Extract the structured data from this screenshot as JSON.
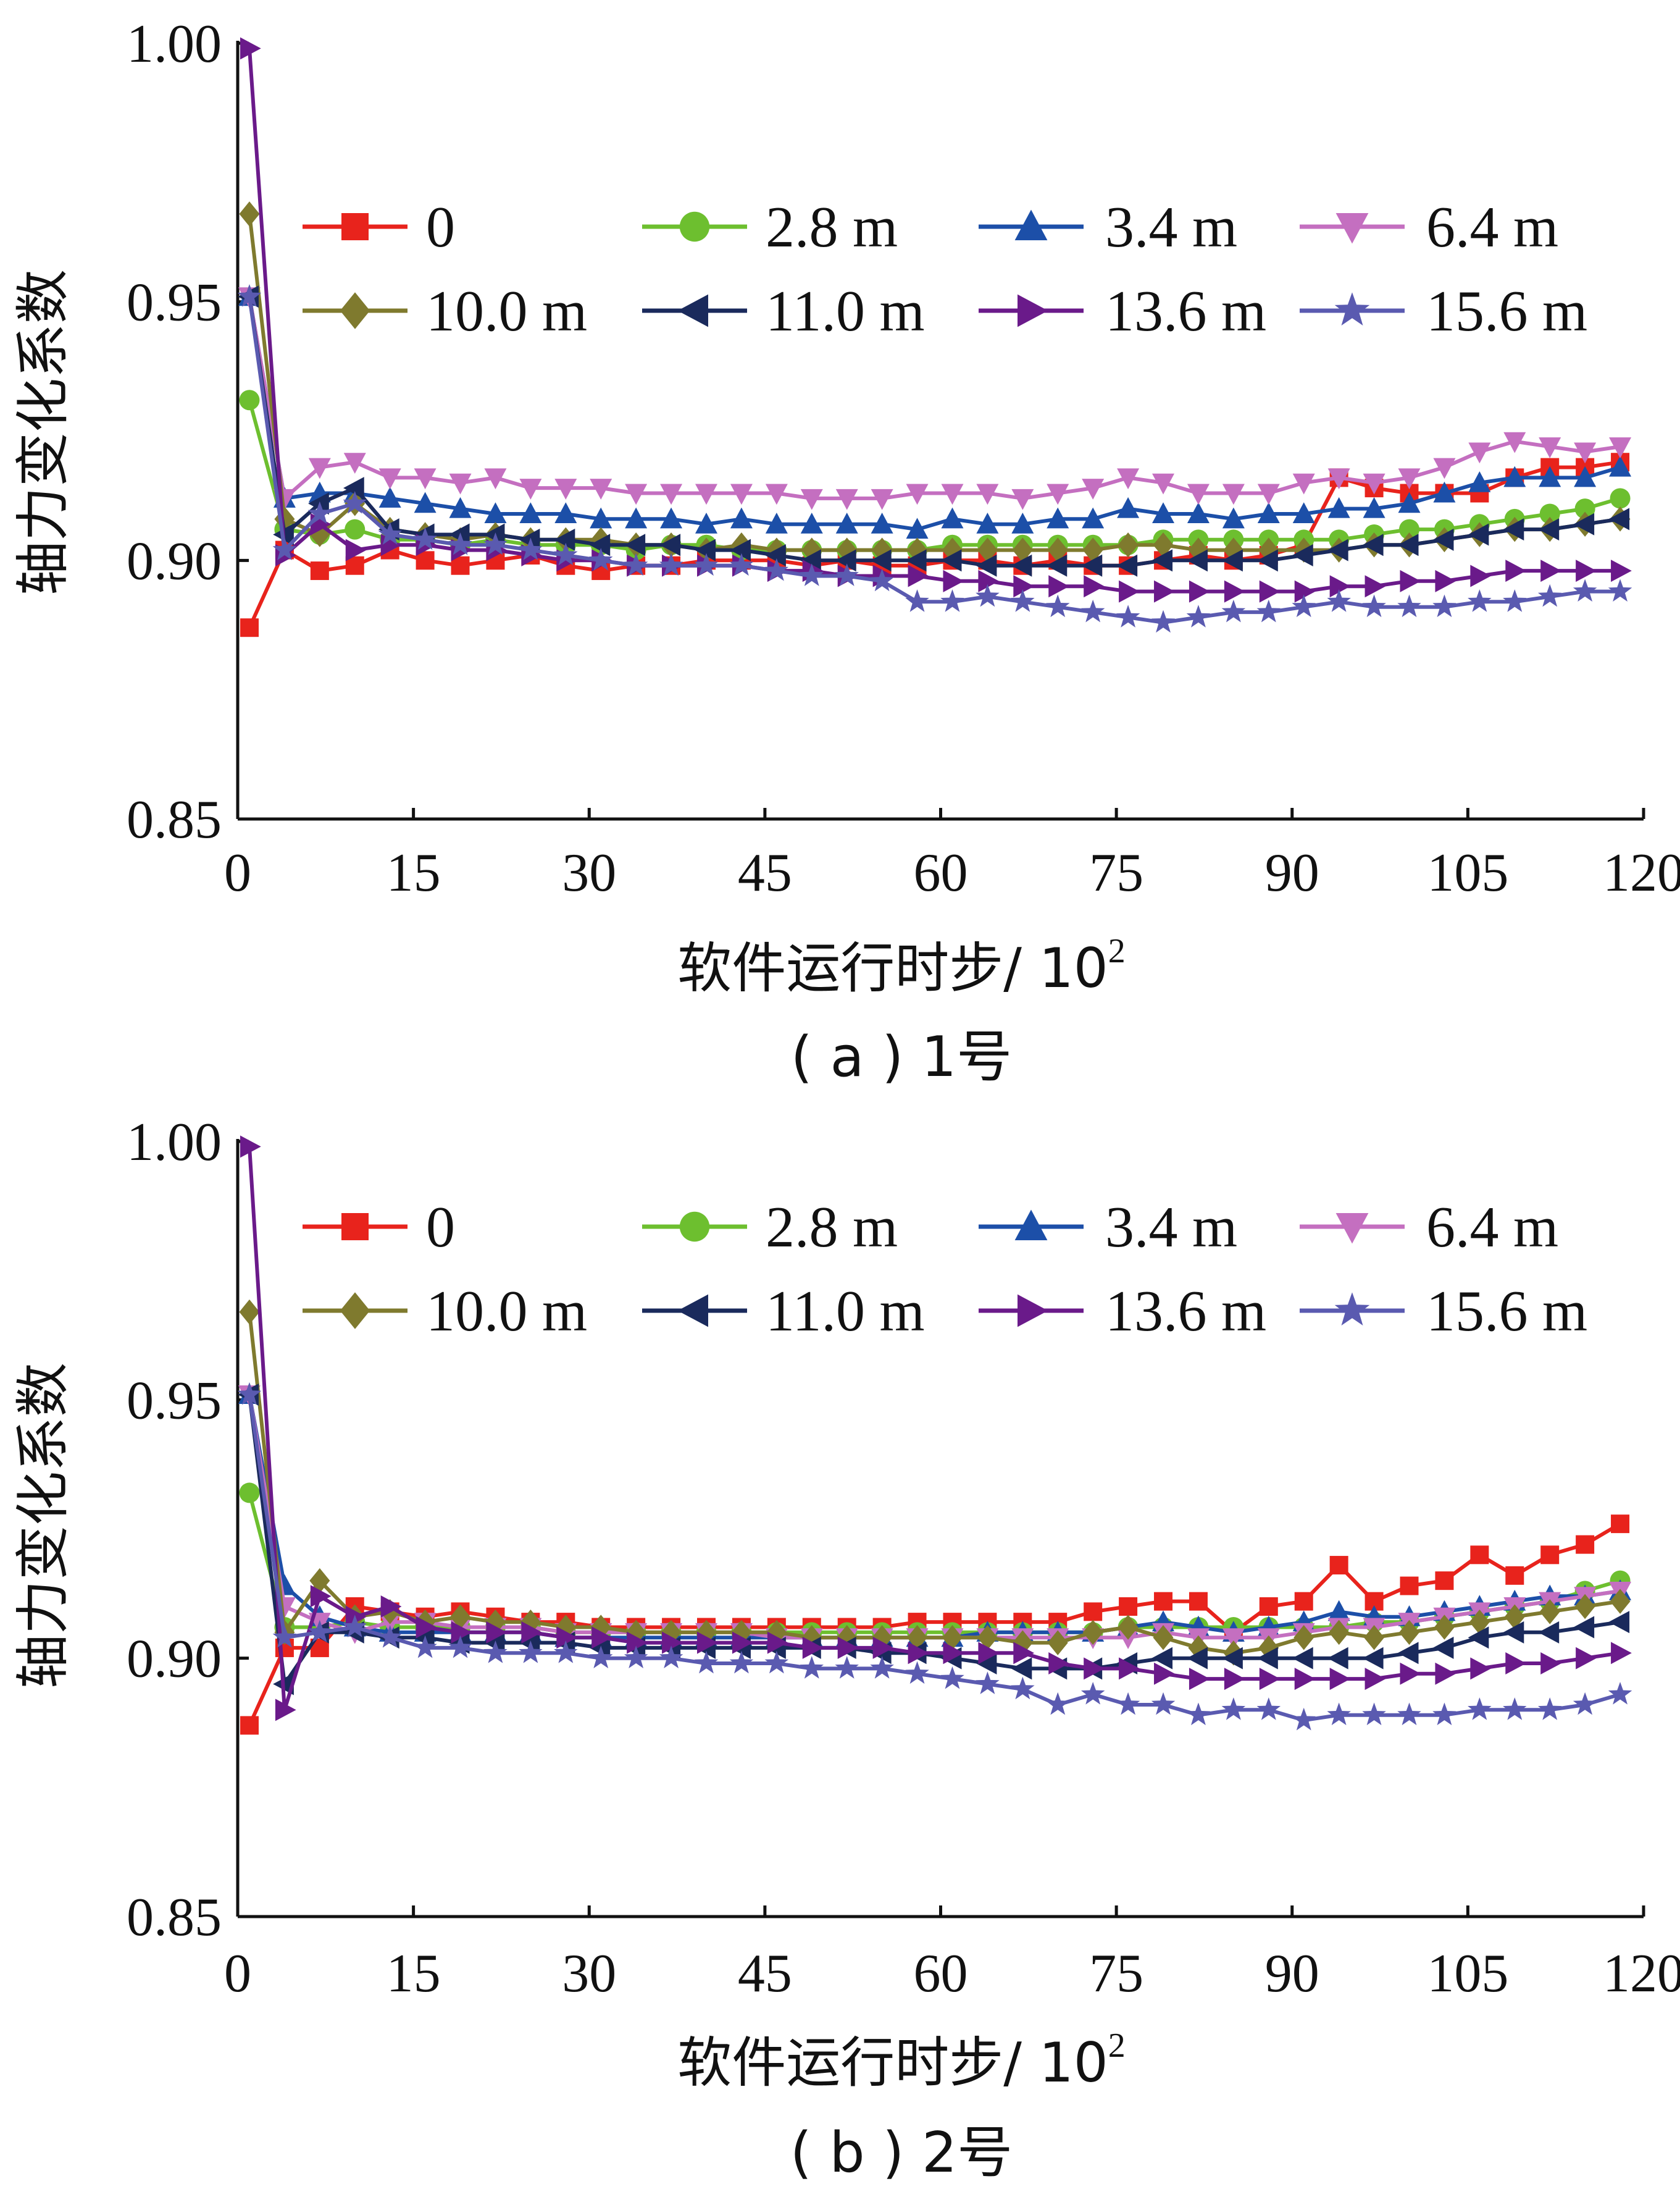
{
  "chart_data": [
    {
      "type": "line",
      "caption": "( a ) 1号",
      "xlabel": "软件运行时步/ 10",
      "xlabel_sup": "2",
      "ylabel": "轴力变化系数",
      "xlim": [
        0,
        120
      ],
      "ylim": [
        0.85,
        1.0
      ],
      "xticks": [
        "0",
        "15",
        "30",
        "45",
        "60",
        "75",
        "90",
        "105",
        "120"
      ],
      "yticks": [
        "0.85",
        "0.90",
        "0.95",
        "1.00"
      ],
      "x": [
        1,
        4,
        7,
        10,
        13,
        16,
        19,
        22,
        25,
        28,
        31,
        34,
        37,
        40,
        43,
        46,
        49,
        52,
        55,
        58,
        61,
        64,
        67,
        70,
        73,
        76,
        79,
        82,
        85,
        88,
        91,
        94,
        97,
        100,
        103,
        106,
        109,
        112,
        115,
        118
      ],
      "legend_position": "top",
      "series": [
        {
          "name": "0",
          "color": "#e8231c",
          "marker": "square",
          "values": [
            0.887,
            0.902,
            0.898,
            0.899,
            0.902,
            0.9,
            0.899,
            0.9,
            0.901,
            0.899,
            0.898,
            0.899,
            0.899,
            0.9,
            0.9,
            0.9,
            0.899,
            0.9,
            0.899,
            0.899,
            0.9,
            0.9,
            0.899,
            0.9,
            0.899,
            0.899,
            0.9,
            0.901,
            0.9,
            0.901,
            0.903,
            0.916,
            0.914,
            0.913,
            0.913,
            0.913,
            0.916,
            0.918,
            0.918,
            0.919
          ]
        },
        {
          "name": "2.8 m",
          "color": "#6dbf2f",
          "marker": "circle",
          "values": [
            0.931,
            0.906,
            0.905,
            0.906,
            0.904,
            0.904,
            0.903,
            0.904,
            0.903,
            0.903,
            0.903,
            0.902,
            0.903,
            0.903,
            0.902,
            0.902,
            0.902,
            0.902,
            0.902,
            0.902,
            0.903,
            0.903,
            0.903,
            0.903,
            0.903,
            0.903,
            0.904,
            0.904,
            0.904,
            0.904,
            0.904,
            0.904,
            0.905,
            0.906,
            0.906,
            0.907,
            0.908,
            0.909,
            0.91,
            0.912
          ]
        },
        {
          "name": "3.4 m",
          "color": "#1c4fa8",
          "marker": "triangle-up",
          "values": [
            0.951,
            0.912,
            0.913,
            0.913,
            0.912,
            0.911,
            0.91,
            0.909,
            0.909,
            0.909,
            0.908,
            0.908,
            0.908,
            0.907,
            0.908,
            0.907,
            0.907,
            0.907,
            0.907,
            0.906,
            0.908,
            0.907,
            0.907,
            0.908,
            0.908,
            0.91,
            0.909,
            0.909,
            0.908,
            0.909,
            0.909,
            0.91,
            0.91,
            0.911,
            0.913,
            0.915,
            0.916,
            0.916,
            0.916,
            0.918
          ]
        },
        {
          "name": "6.4 m",
          "color": "#c46fc0",
          "marker": "triangle-down",
          "values": [
            0.951,
            0.912,
            0.918,
            0.919,
            0.916,
            0.916,
            0.915,
            0.916,
            0.914,
            0.914,
            0.914,
            0.913,
            0.913,
            0.913,
            0.913,
            0.913,
            0.912,
            0.912,
            0.912,
            0.913,
            0.913,
            0.913,
            0.912,
            0.913,
            0.914,
            0.916,
            0.915,
            0.913,
            0.913,
            0.913,
            0.915,
            0.916,
            0.915,
            0.916,
            0.918,
            0.921,
            0.923,
            0.922,
            0.921,
            0.922
          ]
        },
        {
          "name": "10.0 m",
          "color": "#7f7a2e",
          "marker": "diamond",
          "values": [
            0.967,
            0.908,
            0.905,
            0.911,
            0.906,
            0.905,
            0.904,
            0.905,
            0.904,
            0.904,
            0.904,
            0.903,
            0.903,
            0.902,
            0.903,
            0.902,
            0.902,
            0.902,
            0.902,
            0.902,
            0.902,
            0.902,
            0.902,
            0.902,
            0.902,
            0.903,
            0.903,
            0.902,
            0.902,
            0.902,
            0.902,
            0.902,
            0.903,
            0.903,
            0.904,
            0.905,
            0.906,
            0.906,
            0.907,
            0.908
          ]
        },
        {
          "name": "11.0 m",
          "color": "#1a2a5c",
          "marker": "triangle-left",
          "values": [
            0.951,
            0.905,
            0.911,
            0.914,
            0.906,
            0.905,
            0.905,
            0.905,
            0.904,
            0.904,
            0.903,
            0.903,
            0.903,
            0.902,
            0.902,
            0.901,
            0.9,
            0.9,
            0.9,
            0.9,
            0.9,
            0.899,
            0.899,
            0.899,
            0.899,
            0.899,
            0.9,
            0.9,
            0.9,
            0.9,
            0.901,
            0.902,
            0.903,
            0.903,
            0.904,
            0.905,
            0.906,
            0.906,
            0.907,
            0.908
          ]
        },
        {
          "name": "13.6 m",
          "color": "#6a1a8a",
          "marker": "triangle-right",
          "values": [
            0.999,
            0.901,
            0.907,
            0.902,
            0.903,
            0.903,
            0.902,
            0.902,
            0.901,
            0.9,
            0.9,
            0.899,
            0.899,
            0.899,
            0.899,
            0.898,
            0.898,
            0.897,
            0.897,
            0.897,
            0.896,
            0.896,
            0.895,
            0.895,
            0.895,
            0.894,
            0.894,
            0.894,
            0.894,
            0.894,
            0.894,
            0.895,
            0.895,
            0.896,
            0.896,
            0.897,
            0.898,
            0.898,
            0.898,
            0.898
          ]
        },
        {
          "name": "15.6 m",
          "color": "#5a5ab0",
          "marker": "star",
          "values": [
            0.951,
            0.902,
            0.909,
            0.911,
            0.905,
            0.904,
            0.903,
            0.903,
            0.902,
            0.901,
            0.9,
            0.899,
            0.899,
            0.899,
            0.899,
            0.898,
            0.897,
            0.897,
            0.896,
            0.892,
            0.892,
            0.893,
            0.892,
            0.891,
            0.89,
            0.889,
            0.888,
            0.889,
            0.89,
            0.89,
            0.891,
            0.892,
            0.891,
            0.891,
            0.891,
            0.892,
            0.892,
            0.893,
            0.894,
            0.894
          ]
        }
      ]
    },
    {
      "type": "line",
      "caption": "( b ) 2号",
      "xlabel": "软件运行时步/ 10",
      "xlabel_sup": "2",
      "ylabel": "轴力变化系数",
      "xlim": [
        0,
        120
      ],
      "ylim": [
        0.85,
        1.0
      ],
      "xticks": [
        "0",
        "15",
        "30",
        "45",
        "60",
        "75",
        "90",
        "105",
        "120"
      ],
      "yticks": [
        "0.85",
        "0.90",
        "0.95",
        "1.00"
      ],
      "x": [
        1,
        4,
        7,
        10,
        13,
        16,
        19,
        22,
        25,
        28,
        31,
        34,
        37,
        40,
        43,
        46,
        49,
        52,
        55,
        58,
        61,
        64,
        67,
        70,
        73,
        76,
        79,
        82,
        85,
        88,
        91,
        94,
        97,
        100,
        103,
        106,
        109,
        112,
        115,
        118
      ],
      "legend_position": "top",
      "series": [
        {
          "name": "0",
          "color": "#e8231c",
          "marker": "square",
          "values": [
            0.887,
            0.902,
            0.902,
            0.91,
            0.909,
            0.908,
            0.909,
            0.908,
            0.907,
            0.907,
            0.906,
            0.906,
            0.906,
            0.906,
            0.906,
            0.906,
            0.906,
            0.906,
            0.906,
            0.907,
            0.907,
            0.907,
            0.907,
            0.907,
            0.909,
            0.91,
            0.911,
            0.911,
            0.905,
            0.91,
            0.911,
            0.918,
            0.911,
            0.914,
            0.915,
            0.92,
            0.916,
            0.92,
            0.922,
            0.926
          ]
        },
        {
          "name": "2.8 m",
          "color": "#6dbf2f",
          "marker": "circle",
          "values": [
            0.932,
            0.906,
            0.906,
            0.907,
            0.906,
            0.906,
            0.906,
            0.906,
            0.906,
            0.905,
            0.905,
            0.905,
            0.905,
            0.905,
            0.905,
            0.905,
            0.905,
            0.905,
            0.905,
            0.905,
            0.905,
            0.905,
            0.905,
            0.905,
            0.905,
            0.906,
            0.906,
            0.906,
            0.906,
            0.906,
            0.906,
            0.906,
            0.907,
            0.907,
            0.908,
            0.909,
            0.91,
            0.911,
            0.913,
            0.915
          ]
        },
        {
          "name": "3.4 m",
          "color": "#1c4fa8",
          "marker": "triangle-up",
          "values": [
            0.951,
            0.914,
            0.908,
            0.906,
            0.905,
            0.905,
            0.905,
            0.905,
            0.905,
            0.904,
            0.904,
            0.904,
            0.904,
            0.904,
            0.904,
            0.904,
            0.904,
            0.904,
            0.904,
            0.904,
            0.904,
            0.905,
            0.905,
            0.905,
            0.905,
            0.906,
            0.907,
            0.906,
            0.905,
            0.906,
            0.907,
            0.909,
            0.908,
            0.908,
            0.909,
            0.91,
            0.911,
            0.912,
            0.912,
            0.913
          ]
        },
        {
          "name": "6.4 m",
          "color": "#c46fc0",
          "marker": "triangle-down",
          "values": [
            0.951,
            0.91,
            0.907,
            0.905,
            0.907,
            0.907,
            0.906,
            0.906,
            0.906,
            0.905,
            0.905,
            0.905,
            0.905,
            0.905,
            0.905,
            0.904,
            0.904,
            0.904,
            0.904,
            0.904,
            0.904,
            0.904,
            0.904,
            0.904,
            0.904,
            0.904,
            0.905,
            0.904,
            0.904,
            0.904,
            0.905,
            0.906,
            0.906,
            0.907,
            0.908,
            0.909,
            0.91,
            0.911,
            0.912,
            0.913
          ]
        },
        {
          "name": "10.0 m",
          "color": "#7f7a2e",
          "marker": "diamond",
          "values": [
            0.967,
            0.905,
            0.915,
            0.908,
            0.909,
            0.907,
            0.908,
            0.907,
            0.907,
            0.906,
            0.906,
            0.905,
            0.905,
            0.905,
            0.905,
            0.905,
            0.904,
            0.904,
            0.904,
            0.904,
            0.904,
            0.904,
            0.903,
            0.903,
            0.905,
            0.906,
            0.904,
            0.902,
            0.901,
            0.902,
            0.904,
            0.905,
            0.904,
            0.905,
            0.906,
            0.907,
            0.908,
            0.909,
            0.91,
            0.911
          ]
        },
        {
          "name": "11.0 m",
          "color": "#1a2a5c",
          "marker": "triangle-left",
          "values": [
            0.951,
            0.895,
            0.905,
            0.905,
            0.904,
            0.904,
            0.903,
            0.903,
            0.903,
            0.903,
            0.902,
            0.902,
            0.902,
            0.902,
            0.902,
            0.902,
            0.902,
            0.902,
            0.901,
            0.901,
            0.9,
            0.899,
            0.898,
            0.898,
            0.898,
            0.899,
            0.9,
            0.9,
            0.9,
            0.9,
            0.9,
            0.9,
            0.9,
            0.901,
            0.902,
            0.904,
            0.905,
            0.905,
            0.906,
            0.907
          ]
        },
        {
          "name": "13.6 m",
          "color": "#6a1a8a",
          "marker": "triangle-right",
          "values": [
            0.999,
            0.89,
            0.912,
            0.908,
            0.91,
            0.906,
            0.905,
            0.905,
            0.905,
            0.904,
            0.904,
            0.903,
            0.903,
            0.903,
            0.903,
            0.903,
            0.902,
            0.902,
            0.902,
            0.901,
            0.901,
            0.901,
            0.901,
            0.899,
            0.898,
            0.898,
            0.897,
            0.896,
            0.896,
            0.896,
            0.896,
            0.896,
            0.896,
            0.897,
            0.897,
            0.898,
            0.899,
            0.899,
            0.9,
            0.901
          ]
        },
        {
          "name": "15.6 m",
          "color": "#5a5ab0",
          "marker": "star",
          "values": [
            0.951,
            0.904,
            0.905,
            0.906,
            0.904,
            0.902,
            0.902,
            0.901,
            0.901,
            0.901,
            0.9,
            0.9,
            0.9,
            0.899,
            0.899,
            0.899,
            0.898,
            0.898,
            0.898,
            0.897,
            0.896,
            0.895,
            0.894,
            0.891,
            0.893,
            0.891,
            0.891,
            0.889,
            0.89,
            0.89,
            0.888,
            0.889,
            0.889,
            0.889,
            0.889,
            0.89,
            0.89,
            0.89,
            0.891,
            0.893
          ]
        }
      ]
    }
  ]
}
